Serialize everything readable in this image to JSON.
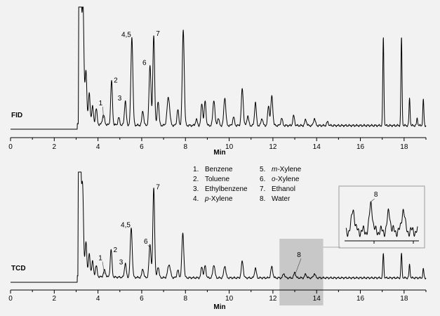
{
  "chart_data": [
    {
      "type": "line",
      "panel_label": "FID",
      "xlabel": "Min",
      "xlim": [
        0,
        19
      ],
      "x_ticks": [
        "0",
        "2",
        "4",
        "6",
        "8",
        "10",
        "12",
        "14",
        "16",
        "18"
      ],
      "baseline": 0.03,
      "peaks": [
        {
          "t": 3.12,
          "h": 1.0,
          "w": 0.05,
          "flat_top": true
        },
        {
          "t": 3.32,
          "h": 0.78,
          "w": 0.04
        },
        {
          "t": 3.45,
          "h": 0.42,
          "w": 0.04
        },
        {
          "t": 3.6,
          "h": 0.25,
          "w": 0.04
        },
        {
          "t": 3.75,
          "h": 0.15,
          "w": 0.04
        },
        {
          "t": 3.92,
          "h": 0.13,
          "w": 0.04
        },
        {
          "t": 4.25,
          "h": 0.08,
          "w": 0.05,
          "label": "1"
        },
        {
          "t": 4.62,
          "h": 0.36,
          "w": 0.04,
          "label": "2"
        },
        {
          "t": 4.95,
          "h": 0.06,
          "w": 0.04
        },
        {
          "t": 5.25,
          "h": 0.2,
          "w": 0.04,
          "label": "3"
        },
        {
          "t": 5.55,
          "h": 0.72,
          "w": 0.045,
          "label": "4,5"
        },
        {
          "t": 6.05,
          "h": 0.12,
          "w": 0.04
        },
        {
          "t": 6.38,
          "h": 0.49,
          "w": 0.045,
          "label": "6"
        },
        {
          "t": 6.55,
          "h": 0.74,
          "w": 0.04,
          "label": "7"
        },
        {
          "t": 6.75,
          "h": 0.2,
          "w": 0.04
        },
        {
          "t": 7.22,
          "h": 0.23,
          "w": 0.06
        },
        {
          "t": 7.65,
          "h": 0.13,
          "w": 0.04
        },
        {
          "t": 7.9,
          "h": 0.78,
          "w": 0.045
        },
        {
          "t": 8.5,
          "h": 0.05,
          "w": 0.04
        },
        {
          "t": 8.75,
          "h": 0.18,
          "w": 0.04
        },
        {
          "t": 8.9,
          "h": 0.2,
          "w": 0.04
        },
        {
          "t": 9.3,
          "h": 0.21,
          "w": 0.045
        },
        {
          "t": 9.5,
          "h": 0.06,
          "w": 0.04
        },
        {
          "t": 9.8,
          "h": 0.23,
          "w": 0.045
        },
        {
          "t": 10.2,
          "h": 0.07,
          "w": 0.04
        },
        {
          "t": 10.6,
          "h": 0.3,
          "w": 0.045
        },
        {
          "t": 10.85,
          "h": 0.08,
          "w": 0.04
        },
        {
          "t": 11.2,
          "h": 0.19,
          "w": 0.04
        },
        {
          "t": 11.5,
          "h": 0.06,
          "w": 0.04
        },
        {
          "t": 11.8,
          "h": 0.16,
          "w": 0.04
        },
        {
          "t": 11.95,
          "h": 0.24,
          "w": 0.045
        },
        {
          "t": 12.4,
          "h": 0.06,
          "w": 0.04
        },
        {
          "t": 12.95,
          "h": 0.08,
          "w": 0.04
        },
        {
          "t": 13.5,
          "h": 0.05,
          "w": 0.04
        },
        {
          "t": 13.9,
          "h": 0.06,
          "w": 0.04
        },
        {
          "t": 14.5,
          "h": 0.03,
          "w": 0.04
        },
        {
          "t": 17.05,
          "h": 0.72,
          "w": 0.025
        },
        {
          "t": 17.88,
          "h": 0.72,
          "w": 0.025
        },
        {
          "t": 18.25,
          "h": 0.22,
          "w": 0.025
        },
        {
          "t": 18.6,
          "h": 0.06,
          "w": 0.025
        },
        {
          "t": 18.88,
          "h": 0.21,
          "w": 0.025
        }
      ]
    },
    {
      "type": "line",
      "panel_label": "TCD",
      "xlabel": "Min",
      "xlim": [
        0,
        19
      ],
      "x_ticks": [
        "0",
        "2",
        "4",
        "6",
        "8",
        "10",
        "12",
        "14",
        "16",
        "18"
      ],
      "baseline": 0.04,
      "highlight_range": [
        12.3,
        14.3
      ],
      "highlight_label": "8",
      "peaks": [
        {
          "t": 3.1,
          "h": 1.0,
          "w": 0.05,
          "flat_top": true
        },
        {
          "t": 3.3,
          "h": 0.63,
          "w": 0.04
        },
        {
          "t": 3.45,
          "h": 0.3,
          "w": 0.04
        },
        {
          "t": 3.6,
          "h": 0.2,
          "w": 0.04
        },
        {
          "t": 3.75,
          "h": 0.14,
          "w": 0.04
        },
        {
          "t": 3.92,
          "h": 0.1,
          "w": 0.04
        },
        {
          "t": 4.3,
          "h": 0.06,
          "w": 0.05,
          "label": "1"
        },
        {
          "t": 4.6,
          "h": 0.25,
          "w": 0.04,
          "label": "2"
        },
        {
          "t": 5.25,
          "h": 0.13,
          "w": 0.04,
          "label": "3"
        },
        {
          "t": 5.52,
          "h": 0.45,
          "w": 0.045,
          "label": "4,5"
        },
        {
          "t": 6.05,
          "h": 0.08,
          "w": 0.04
        },
        {
          "t": 6.38,
          "h": 0.3,
          "w": 0.045,
          "label": "6"
        },
        {
          "t": 6.55,
          "h": 0.82,
          "w": 0.04,
          "label": "7"
        },
        {
          "t": 6.75,
          "h": 0.1,
          "w": 0.04
        },
        {
          "t": 7.25,
          "h": 0.12,
          "w": 0.06
        },
        {
          "t": 7.65,
          "h": 0.07,
          "w": 0.04
        },
        {
          "t": 7.88,
          "h": 0.4,
          "w": 0.045
        },
        {
          "t": 8.75,
          "h": 0.1,
          "w": 0.04
        },
        {
          "t": 8.9,
          "h": 0.11,
          "w": 0.04
        },
        {
          "t": 9.3,
          "h": 0.12,
          "w": 0.045
        },
        {
          "t": 9.8,
          "h": 0.11,
          "w": 0.045
        },
        {
          "t": 10.6,
          "h": 0.15,
          "w": 0.045
        },
        {
          "t": 11.2,
          "h": 0.09,
          "w": 0.04
        },
        {
          "t": 11.95,
          "h": 0.1,
          "w": 0.045
        },
        {
          "t": 12.5,
          "h": 0.04,
          "w": 0.04
        },
        {
          "t": 13.0,
          "h": 0.05,
          "w": 0.04,
          "label": "8"
        },
        {
          "t": 13.5,
          "h": 0.035,
          "w": 0.04
        },
        {
          "t": 13.9,
          "h": 0.04,
          "w": 0.04
        },
        {
          "t": 17.05,
          "h": 0.22,
          "w": 0.025
        },
        {
          "t": 17.88,
          "h": 0.22,
          "w": 0.025
        },
        {
          "t": 18.25,
          "h": 0.12,
          "w": 0.025
        },
        {
          "t": 18.88,
          "h": 0.08,
          "w": 0.025
        }
      ]
    }
  ],
  "legend": [
    {
      "num": "1.",
      "prefix": "",
      "name": "Benzene"
    },
    {
      "num": "2.",
      "prefix": "",
      "name": "Toluene"
    },
    {
      "num": "3.",
      "prefix": "",
      "name": "Ethylbenzene"
    },
    {
      "num": "4.",
      "prefix": "p-",
      "name": "Xylene"
    },
    {
      "num": "5.",
      "prefix": "m-",
      "name": "Xylene"
    },
    {
      "num": "6.",
      "prefix": "o-",
      "name": "Xylene"
    },
    {
      "num": "7.",
      "prefix": "",
      "name": "Ethanol"
    },
    {
      "num": "8.",
      "prefix": "",
      "name": "Water"
    }
  ],
  "colors": {
    "background": "#f2f2f2",
    "highlight": "#c8c8c8",
    "inset_border": "#aaaaaa",
    "trace": "#000000"
  }
}
